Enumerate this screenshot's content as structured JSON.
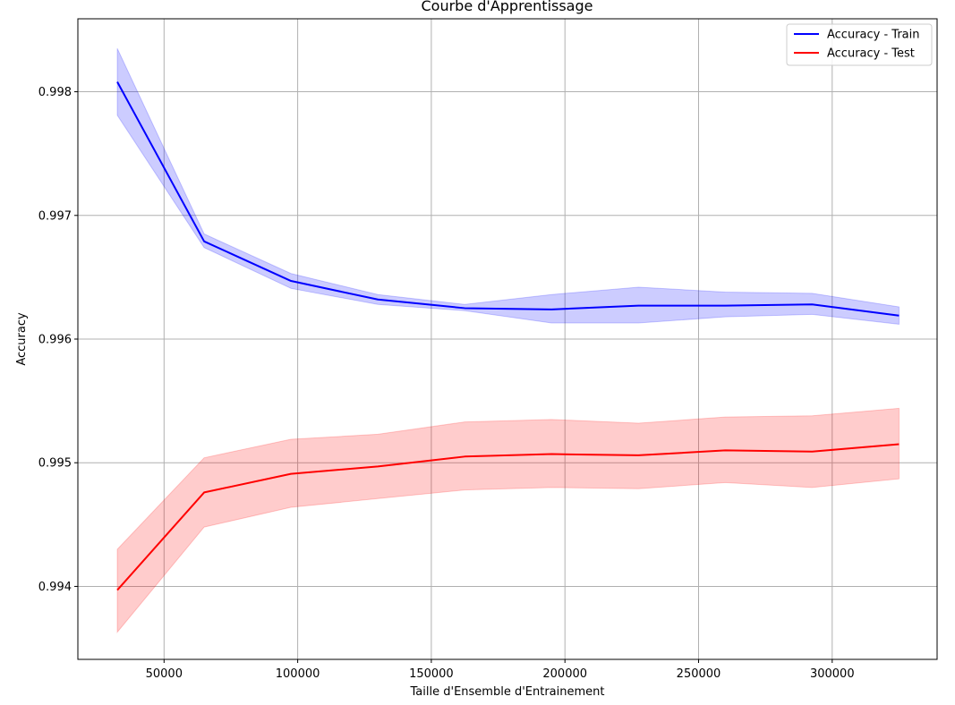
{
  "chart_data": {
    "type": "line",
    "title": "Courbe d'Apprentissage",
    "xlabel": "Taille d'Ensemble d'Entrainement",
    "ylabel": "Accuracy",
    "xlim": [
      17750,
      339250
    ],
    "ylim": [
      0.99341,
      0.99859
    ],
    "xticks": [
      50000,
      100000,
      150000,
      200000,
      250000,
      300000
    ],
    "xtick_labels": [
      "50000",
      "100000",
      "150000",
      "200000",
      "250000",
      "300000"
    ],
    "yticks": [
      0.994,
      0.995,
      0.996,
      0.997,
      0.998
    ],
    "ytick_labels": [
      "0.994",
      "0.995",
      "0.996",
      "0.997",
      "0.998"
    ],
    "grid": true,
    "legend_position": "top-right",
    "x": [
      32500,
      65000,
      97500,
      130000,
      162500,
      195000,
      227500,
      260000,
      292500,
      325000
    ],
    "series": [
      {
        "name": "Accuracy - Train",
        "color": "#0000ff",
        "band_color": "#0000ff",
        "values": [
          0.99808,
          0.99679,
          0.99647,
          0.99632,
          0.99625,
          0.99624,
          0.99627,
          0.99627,
          0.99628,
          0.99619
        ],
        "lower": [
          0.99781,
          0.99674,
          0.99641,
          0.99628,
          0.99623,
          0.99613,
          0.99613,
          0.99618,
          0.9962,
          0.99612
        ],
        "upper": [
          0.99835,
          0.99685,
          0.99653,
          0.99636,
          0.99628,
          0.99636,
          0.99642,
          0.99638,
          0.99637,
          0.99626
        ]
      },
      {
        "name": "Accuracy - Test",
        "color": "#ff0000",
        "band_color": "#ff0000",
        "values": [
          0.99397,
          0.99476,
          0.99491,
          0.99497,
          0.99505,
          0.99507,
          0.99506,
          0.9951,
          0.99509,
          0.99515
        ],
        "lower": [
          0.99363,
          0.99448,
          0.99464,
          0.99471,
          0.99478,
          0.9948,
          0.99479,
          0.99484,
          0.9948,
          0.99487
        ],
        "upper": [
          0.9943,
          0.99504,
          0.99519,
          0.99523,
          0.99533,
          0.99535,
          0.99532,
          0.99537,
          0.99538,
          0.99544
        ]
      }
    ]
  }
}
